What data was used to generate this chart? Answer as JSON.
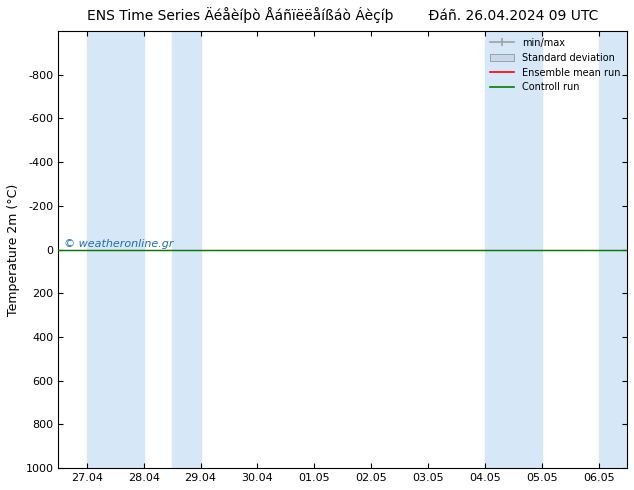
{
  "title_left": "ENS Time Series Äéåèíþò Åáñïëëåíßáò Áèçíþ",
  "title_right": "Ðáñ. 26.04.2024 09 UTC",
  "ylabel": "Temperature 2m (°C)",
  "ylim_top": -1000,
  "ylim_bottom": 1000,
  "yticks": [
    -800,
    -600,
    -400,
    -200,
    0,
    200,
    400,
    600,
    800,
    1000
  ],
  "xlim_start": -0.5,
  "xlim_end": 9.5,
  "xtick_labels": [
    "27.04",
    "28.04",
    "29.04",
    "30.04",
    "01.05",
    "02.05",
    "03.05",
    "04.05",
    "05.05",
    "06.05"
  ],
  "xtick_positions": [
    0,
    1,
    2,
    3,
    4,
    5,
    6,
    7,
    8,
    9
  ],
  "shaded_bands": [
    [
      0.0,
      1.0
    ],
    [
      1.5,
      2.0
    ],
    [
      7.0,
      8.0
    ],
    [
      9.0,
      9.5
    ]
  ],
  "shaded_color": "#d6e8f7",
  "green_line_color": "#008000",
  "red_line_color": "#ff0000",
  "watermark": "© weatheronline.gr",
  "watermark_color": "#1e6db5",
  "bg_color": "#ffffff",
  "plot_bg_color": "#ffffff",
  "legend_items": [
    "min/max",
    "Standard deviation",
    "Ensemble mean run",
    "Controll run"
  ],
  "legend_colors_line": [
    "#a0a0a0",
    "#c8d8e8",
    "#ff0000",
    "#008000"
  ],
  "title_fontsize": 10,
  "axis_label_fontsize": 9
}
